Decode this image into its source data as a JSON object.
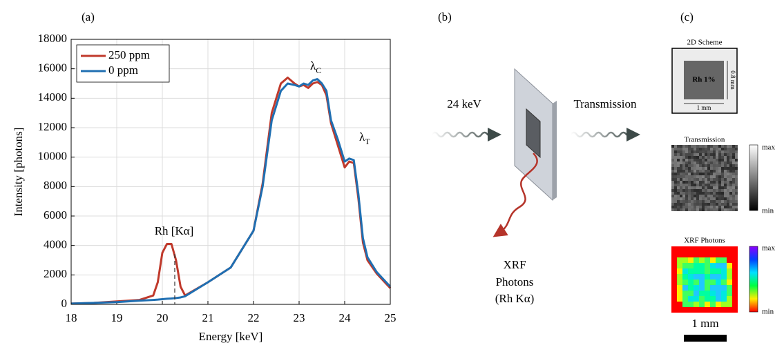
{
  "chart_data": {
    "type": "line",
    "panel_label": "(a)",
    "xlabel": "Energy [keV]",
    "ylabel": "Intensity [photons]",
    "x": [
      18,
      18.5,
      19,
      19.5,
      19.8,
      19.9,
      20,
      20.1,
      20.2,
      20.3,
      20.4,
      20.5,
      21,
      21.5,
      22,
      22.2,
      22.4,
      22.6,
      22.75,
      22.9,
      23,
      23.1,
      23.2,
      23.3,
      23.4,
      23.5,
      23.6,
      23.7,
      23.85,
      24,
      24.1,
      24.2,
      24.3,
      24.4,
      24.5,
      24.7,
      25
    ],
    "series": [
      {
        "name": "250 ppm",
        "color": "#c0392b",
        "values": [
          50,
          100,
          200,
          300,
          600,
          1500,
          3500,
          4100,
          4100,
          3000,
          1200,
          600,
          1500,
          2500,
          5000,
          8200,
          13000,
          15000,
          15400,
          15000,
          14800,
          14900,
          14700,
          15000,
          15100,
          14900,
          14200,
          12300,
          10800,
          9300,
          9700,
          9600,
          7200,
          4200,
          3000,
          2100,
          1100
        ]
      },
      {
        "name": "0 ppm",
        "color": "#1f6fb2",
        "values": [
          50,
          100,
          150,
          250,
          300,
          320,
          350,
          380,
          400,
          430,
          470,
          550,
          1500,
          2500,
          5000,
          8000,
          12500,
          14500,
          15000,
          14900,
          14800,
          15000,
          14900,
          15200,
          15300,
          15000,
          14500,
          12500,
          11200,
          9700,
          9900,
          9800,
          7500,
          4500,
          3200,
          2200,
          1200
        ]
      }
    ],
    "xlim": [
      18,
      25
    ],
    "xticks": [
      18,
      19,
      20,
      21,
      22,
      23,
      24,
      25
    ],
    "ylim": [
      0,
      18000
    ],
    "yticks": [
      0,
      2000,
      4000,
      6000,
      8000,
      10000,
      12000,
      14000,
      16000,
      18000
    ],
    "grid": true,
    "legend": "upper left",
    "annotations": [
      {
        "text": "Rh [Kα]"
      },
      {
        "symbol": "λ",
        "subscript": "C"
      },
      {
        "symbol": "λ",
        "subscript": "T"
      }
    ]
  },
  "schematic": {
    "panel_label": "(b)",
    "beam_label": "24 keV",
    "transmission_label": "Transmission",
    "xrf_label": [
      "XRF",
      "Photons",
      "(Rh Kα)"
    ]
  },
  "maps": {
    "panel_label": "(c)",
    "scheme": {
      "title": "2D Scheme",
      "sample": "Rh 1%",
      "height": "0.8 mm",
      "width": "1 mm"
    },
    "transmission": {
      "title": "Transmission",
      "max": "max",
      "min": "min"
    },
    "xrf": {
      "title": "XRF Photons",
      "max": "max",
      "min": "min"
    },
    "scale_bar": "1 mm"
  }
}
